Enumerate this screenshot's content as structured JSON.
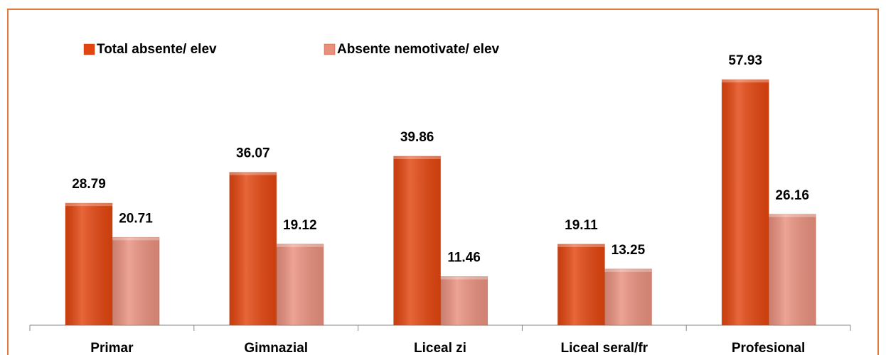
{
  "chart_data": {
    "type": "bar",
    "categories": [
      "Primar",
      "Gimnazial",
      "Liceal zi",
      "Liceal seral/fr",
      "Profesional"
    ],
    "series": [
      {
        "name": "Total absente/ elev",
        "color": "#e2450f",
        "values": [
          28.79,
          36.07,
          39.86,
          19.11,
          57.93
        ]
      },
      {
        "name": "Absente nemotivate/ elev",
        "color": "#e8907e",
        "values": [
          20.71,
          19.12,
          11.46,
          13.25,
          26.16
        ]
      }
    ],
    "legend": "top-left"
  }
}
